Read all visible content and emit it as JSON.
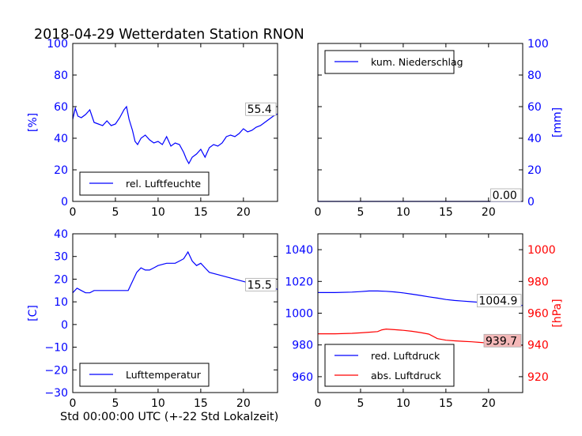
{
  "title": "2018-04-29 Wetterdaten Station RNON",
  "xlabel": "Std 00:00:00 UTC (+-22 Std Lokalzeit)",
  "colors": {
    "blue": "#0000ff",
    "red": "#ff0000",
    "black": "#000000",
    "redbox": "#f4b8b8"
  },
  "chart_data": [
    {
      "id": "humidity",
      "type": "line",
      "ylabel": "[%]",
      "xlim": [
        0,
        24
      ],
      "ylim": [
        0,
        100
      ],
      "xticks": [
        0,
        5,
        10,
        15,
        20
      ],
      "yticks": [
        0,
        20,
        40,
        60,
        80,
        100
      ],
      "axis_side": "left",
      "grid": false,
      "legend": "lower-left",
      "last_value_label": "55.4",
      "series": [
        {
          "name": "rel. Luftfeuchte",
          "color": "#0000ff",
          "x": [
            0,
            0.3,
            0.6,
            1.0,
            1.5,
            2.0,
            2.5,
            3.0,
            3.5,
            4.0,
            4.5,
            5.0,
            5.5,
            6.0,
            6.3,
            6.6,
            7.0,
            7.3,
            7.6,
            8.0,
            8.5,
            9.0,
            9.5,
            10.0,
            10.5,
            11.0,
            11.5,
            12.0,
            12.5,
            13.0,
            13.3,
            13.6,
            14.0,
            14.5,
            15.0,
            15.5,
            16.0,
            16.5,
            17.0,
            17.5,
            18.0,
            18.5,
            19.0,
            19.5,
            20.0,
            20.5,
            21.0,
            21.5,
            22.0,
            22.5,
            23.0,
            23.5,
            24.0
          ],
          "y": [
            52,
            59,
            54,
            53,
            55,
            58,
            50,
            49,
            48,
            51,
            48,
            49,
            53,
            58,
            60,
            52,
            45,
            38,
            36,
            40,
            42,
            39,
            37,
            38,
            36,
            41,
            35,
            37,
            36,
            31,
            27,
            24,
            28,
            30,
            33,
            28,
            34,
            36,
            35,
            37,
            41,
            42,
            41,
            43,
            46,
            44,
            45,
            47,
            48,
            50,
            52,
            54,
            55.4
          ]
        }
      ]
    },
    {
      "id": "precip",
      "type": "line",
      "ylabel": "[mm]",
      "xlim": [
        0,
        24
      ],
      "ylim": [
        0,
        100
      ],
      "xticks": [
        0,
        5,
        10,
        15,
        20
      ],
      "yticks": [
        0,
        20,
        40,
        60,
        80,
        100
      ],
      "axis_side": "right",
      "grid": false,
      "legend": "upper-left",
      "last_value_label": "0.00",
      "series": [
        {
          "name": "kum. Niederschlag",
          "color": "#0000ff",
          "x": [
            0,
            24
          ],
          "y": [
            0,
            0
          ]
        }
      ]
    },
    {
      "id": "temperature",
      "type": "line",
      "ylabel": "[C]",
      "xlim": [
        0,
        24
      ],
      "ylim": [
        -30,
        40
      ],
      "xticks": [
        0,
        5,
        10,
        15,
        20
      ],
      "yticks": [
        -30,
        -20,
        -10,
        0,
        10,
        20,
        30,
        40
      ],
      "axis_side": "left",
      "grid": false,
      "legend": "lower-left",
      "last_value_label": "15.5",
      "series": [
        {
          "name": "Lufttemperatur",
          "color": "#0000ff",
          "x": [
            0,
            0.5,
            1.0,
            1.5,
            2.0,
            2.5,
            3.0,
            4.0,
            5.0,
            6.0,
            6.5,
            7.0,
            7.5,
            8.0,
            8.5,
            9.0,
            9.5,
            10.0,
            11.0,
            12.0,
            12.5,
            13.0,
            13.5,
            14.0,
            14.5,
            15.0,
            15.5,
            16.0,
            17.0,
            18.0,
            19.0,
            20.0,
            21.0,
            22.0,
            23.0,
            24.0
          ],
          "y": [
            14,
            16,
            15,
            14,
            14,
            15,
            15,
            15,
            15,
            15,
            15,
            19,
            23,
            25,
            24,
            24,
            25,
            26,
            27,
            27,
            28,
            29,
            32,
            28,
            26,
            27,
            25,
            23,
            22,
            21,
            20,
            19,
            18,
            18,
            17,
            15.5
          ]
        }
      ]
    },
    {
      "id": "pressure",
      "type": "line",
      "ylabel": "[hPa]",
      "xlim": [
        0,
        24
      ],
      "ylim": [
        950,
        1050
      ],
      "ylim_right": [
        910,
        1010
      ],
      "xticks": [
        0,
        5,
        10,
        15,
        20
      ],
      "yticks": [
        960,
        980,
        1000,
        1020,
        1040
      ],
      "yticks_right": [
        920,
        940,
        960,
        980,
        1000
      ],
      "axis_side": "both",
      "grid": false,
      "legend": "lower-left",
      "series": [
        {
          "name": "red. Luftdruck",
          "color": "#0000ff",
          "axis": "left",
          "last_value_label": "1004.9",
          "x": [
            0,
            2,
            4,
            5,
            6,
            7,
            8,
            9,
            10,
            11,
            12,
            13,
            14,
            15,
            16,
            17,
            18,
            19,
            20,
            21,
            22,
            23,
            24
          ],
          "y": [
            1013,
            1013,
            1013.3,
            1013.6,
            1014,
            1014,
            1013.8,
            1013.4,
            1012.8,
            1012,
            1011.2,
            1010.3,
            1009.5,
            1008.6,
            1008,
            1007.6,
            1007.2,
            1006.8,
            1006.3,
            1005.9,
            1005.4,
            1005.1,
            1004.9
          ]
        },
        {
          "name": "abs. Luftdruck",
          "color": "#ff0000",
          "axis": "right",
          "last_value_label": "939.7",
          "x": [
            0,
            2,
            4,
            5,
            6,
            7,
            7.5,
            8,
            9,
            10,
            11,
            12,
            13,
            14,
            15,
            16,
            17,
            18,
            19,
            20,
            21,
            22,
            23,
            24
          ],
          "y": [
            947,
            947,
            947.3,
            947.6,
            948,
            948.4,
            949.5,
            950,
            949.6,
            949.2,
            948.6,
            947.8,
            946.8,
            944,
            943,
            942.6,
            942.3,
            942,
            941.6,
            941.2,
            940.8,
            940.4,
            940,
            939.7
          ]
        }
      ]
    }
  ]
}
